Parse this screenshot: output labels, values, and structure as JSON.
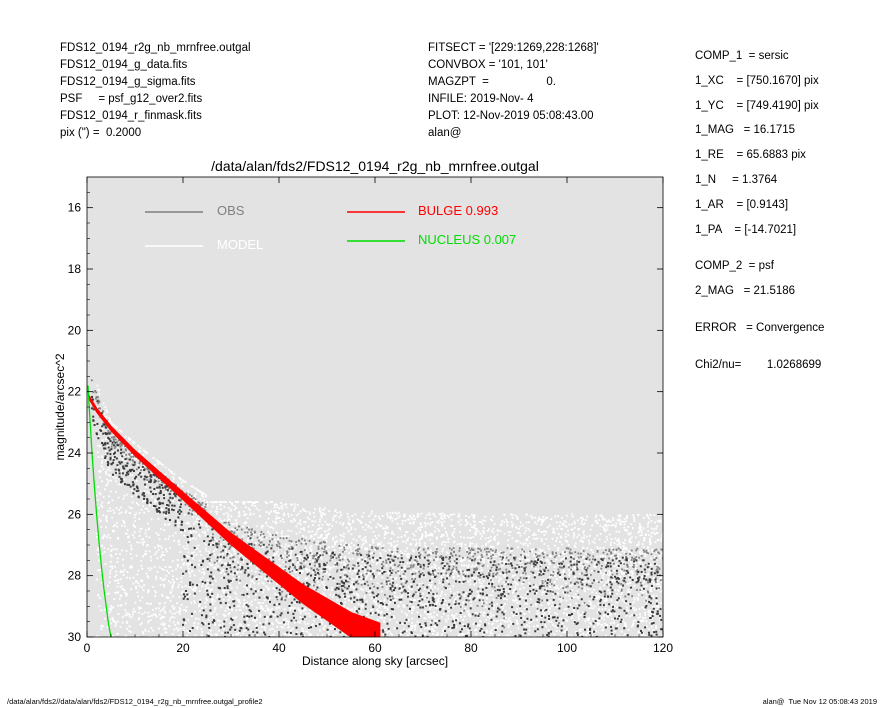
{
  "header_left": [
    "FDS12_0194_r2g_nb_mrnfree.outgal",
    "FDS12_0194_g_data.fits",
    "FDS12_0194_g_sigma.fits",
    "PSF     = psf_g12_over2.fits",
    "FDS12_0194_r_finmask.fits",
    "pix (\") =  0.2000"
  ],
  "header_mid": [
    "FITSECT = '[229:1269,228:1268]'",
    "CONVBOX = '101, 101'",
    "MAGZPT  =                  0.",
    "INFILE: 2019-Nov- 4",
    "PLOT: 12-Nov-2019 05:08:43.00",
    "alan@"
  ],
  "header_right": {
    "comp1": [
      "COMP_1  = sersic",
      "1_XC    = [750.1670] pix",
      "1_YC    = [749.4190] pix",
      "1_MAG   = 16.1715",
      "1_RE    = 65.6883 pix",
      "1_N     = 1.3764",
      "1_AR    = [0.9143]",
      "1_PA    = [-14.7021]"
    ],
    "comp2": [
      "COMP_2  = psf",
      "2_MAG   = 21.5186"
    ],
    "error": "ERROR   = Convergence",
    "chi2": "Chi2/nu=        1.0268699"
  },
  "footer_left": "/data/alan/fds2//data/alan/fds2/FDS12_0194_r2g_nb_mrnfree.outgal_profile2",
  "footer_right": "alan@  Tue Nov 12 05:08:43 2019",
  "colors": {
    "plot_bg": "#e3e3e3",
    "obs": "#808080",
    "obs_dark": "#3a3a3a",
    "model": "#ffffff",
    "bulge": "#ff0000",
    "nucleus": "#00dd00"
  },
  "chart_data": {
    "type": "scatter",
    "title": "/data/alan/fds2/FDS12_0194_r2g_nb_mrnfree.outgal",
    "xlabel": "Distance along sky [arcsec]",
    "ylabel": "magnitude/arcsec^2",
    "xlim": [
      0,
      120
    ],
    "ylim": [
      30,
      15
    ],
    "y_inverted": true,
    "xticks": [
      0,
      20,
      40,
      60,
      80,
      100,
      120
    ],
    "yticks": [
      16,
      18,
      20,
      22,
      24,
      26,
      28,
      30
    ],
    "legend": {
      "placement": "top-left",
      "entries": [
        {
          "label": "OBS",
          "color": "#808080"
        },
        {
          "label": "MODEL",
          "color": "#ffffff"
        },
        {
          "label": "BULGE  0.993",
          "color": "#ff0000"
        },
        {
          "label": "NUCLEUS  0.007",
          "color": "#00dd00"
        }
      ]
    },
    "series": [
      {
        "name": "BULGE",
        "color": "#ff0000",
        "x": [
          0.5,
          2,
          5,
          10,
          15,
          20,
          25,
          30,
          35,
          40,
          45,
          50,
          55,
          61
        ],
        "y": [
          22.2,
          22.6,
          23.2,
          24.0,
          24.7,
          25.4,
          26.1,
          26.8,
          27.4,
          28.0,
          28.6,
          29.1,
          29.6,
          30.0
        ],
        "band_width": [
          0.05,
          0.06,
          0.07,
          0.08,
          0.1,
          0.12,
          0.15,
          0.18,
          0.22,
          0.26,
          0.3,
          0.35,
          0.4,
          0.45
        ]
      },
      {
        "name": "NUCLEUS",
        "color": "#00dd00",
        "x": [
          0.2,
          0.5,
          1,
          1.5,
          2,
          2.5,
          3,
          3.5,
          4,
          4.5,
          5
        ],
        "y": [
          21.8,
          22.6,
          23.9,
          25.0,
          26.0,
          26.9,
          27.7,
          28.4,
          29.0,
          29.6,
          30.0
        ]
      },
      {
        "name": "OBS",
        "color": "#808080",
        "mean_profile": {
          "x": [
            0.5,
            5,
            10,
            15,
            20,
            25,
            30,
            40,
            50,
            60,
            80,
            100,
            120
          ],
          "y": [
            21.4,
            23.3,
            24.0,
            24.6,
            25.2,
            25.7,
            26.0,
            26.4,
            26.6,
            26.7,
            26.8,
            26.8,
            26.8
          ]
        },
        "scatter_upper_limit": 25.6,
        "scatter_lower_limit": 30.0
      },
      {
        "name": "MODEL",
        "color": "#ffffff",
        "x": [
          0,
          120
        ],
        "y": [
          25.5,
          30.0
        ]
      }
    ]
  }
}
